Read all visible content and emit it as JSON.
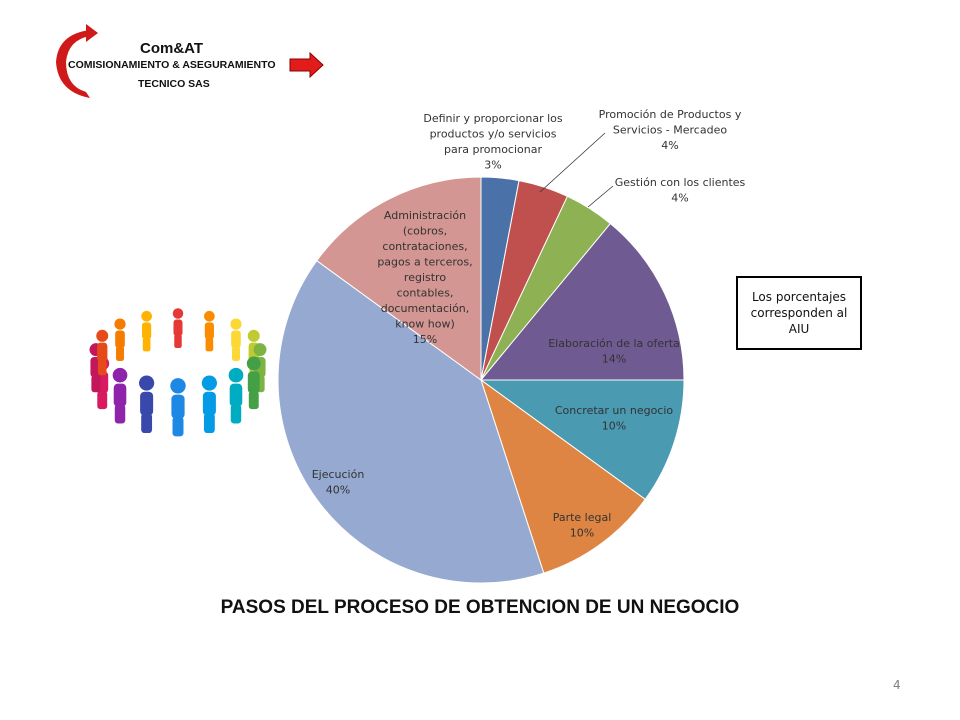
{
  "logo": {
    "title": "Com&AT",
    "line1": "COMISIONAMIENTO  & ASEGURAMIENTO",
    "line2": "TECNICO  SAS"
  },
  "note": "Los porcentajes corresponden al AIU",
  "page_number": "4",
  "chart_data": {
    "type": "pie",
    "title": "PASOS  DEL PROCESO DE OBTENCION DE UN NEGOCIO",
    "start": "12 o'clock, clockwise",
    "slices": [
      {
        "label": "Definir y proporcionar los productos y/o servicios para promocionar",
        "value": 3,
        "display": "3%",
        "color": "#4a72a8"
      },
      {
        "label": "Promoción de Productos y Servicios - Mercadeo",
        "value": 4,
        "display": "4%",
        "color": "#c0504d"
      },
      {
        "label": "Gestión con los clientes",
        "value": 4,
        "display": "4%",
        "color": "#8db153"
      },
      {
        "label": "Elaboración de la oferta",
        "value": 14,
        "display": "14%",
        "color": "#6f5a91"
      },
      {
        "label": "Concretar un negocio",
        "value": 10,
        "display": "10%",
        "color": "#4a9ab2"
      },
      {
        "label": "Parte legal",
        "value": 10,
        "display": "10%",
        "color": "#de8544"
      },
      {
        "label": "Ejecución",
        "value": 40,
        "display": "40%",
        "color": "#95a9d1"
      },
      {
        "label": "Administración (cobros, contrataciones, pagos a terceros, registro contables, documentación, know how)",
        "value": 15,
        "display": "15%",
        "color": "#d39693"
      }
    ]
  }
}
